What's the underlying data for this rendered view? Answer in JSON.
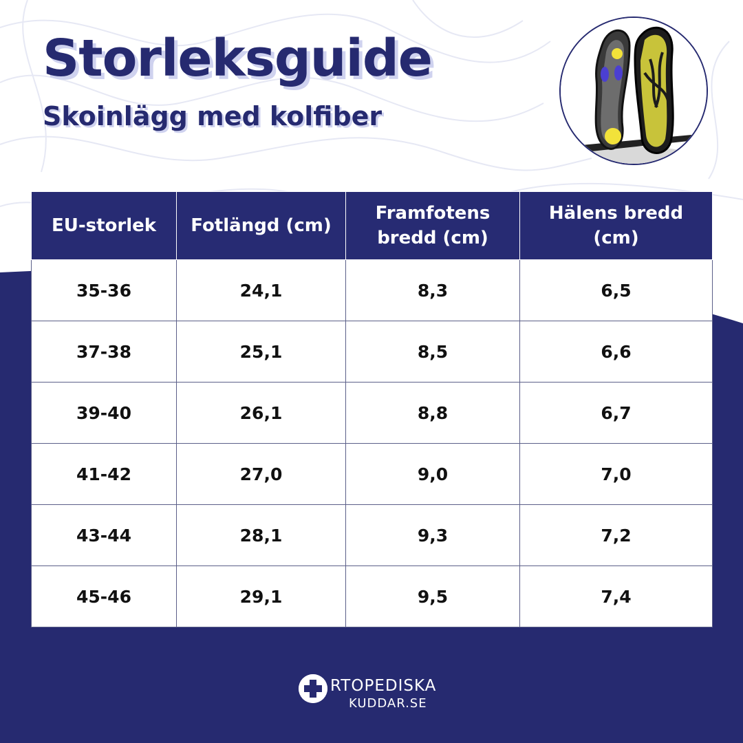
{
  "header": {
    "title": "Storleksguide",
    "subtitle": "Skoinlägg med kolfiber"
  },
  "product_image": {
    "icon": "carbon-fiber-insoles-photo"
  },
  "size_table": {
    "headers": [
      "EU-storlek",
      "Fotlängd (cm)",
      "Framfotens bredd (cm)",
      "Hälens bredd (cm)"
    ],
    "rows": [
      [
        "35-36",
        "24,1",
        "8,3",
        "6,5"
      ],
      [
        "37-38",
        "25,1",
        "8,5",
        "6,6"
      ],
      [
        "39-40",
        "26,1",
        "8,8",
        "6,7"
      ],
      [
        "41-42",
        "27,0",
        "9,0",
        "7,0"
      ],
      [
        "43-44",
        "28,1",
        "9,3",
        "7,2"
      ],
      [
        "45-46",
        "29,1",
        "9,5",
        "7,4"
      ]
    ]
  },
  "brand": {
    "icon": "medical-cross-icon",
    "name": "RTOPEDISKA",
    "domain": "KUDDAR.SE"
  },
  "colors": {
    "navy": "#262a70",
    "header_bg": "#272b73",
    "title_shadow": "#cfd2ef",
    "background": "#ffffff"
  }
}
